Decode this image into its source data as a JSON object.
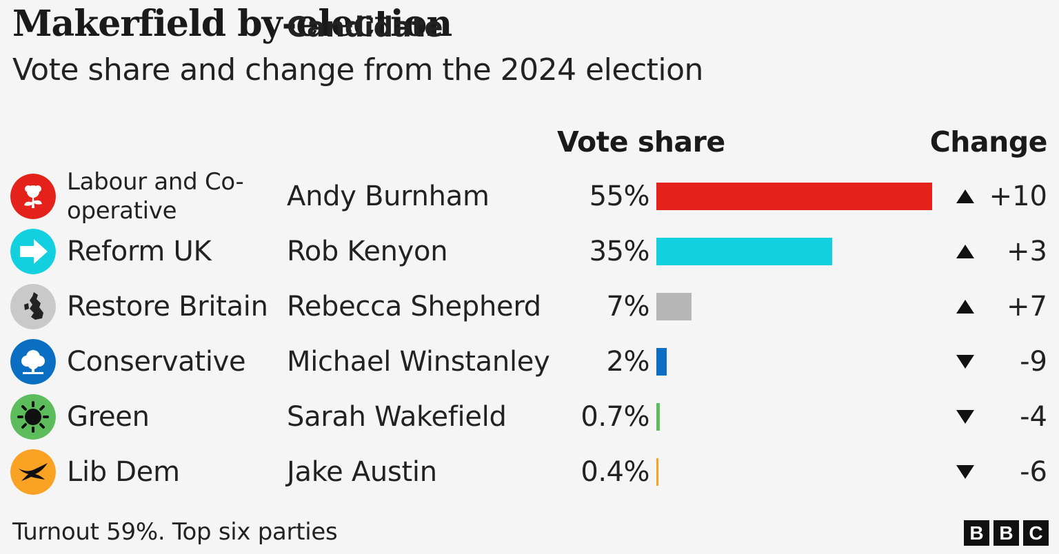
{
  "title": "Makerfield by-election",
  "subtitle": "Vote share and change from the 2024 election",
  "headers": {
    "candidate": "Candidate",
    "vote_share": "Vote share",
    "change": "Change"
  },
  "footnote": "Turnout 59%. Top six parties",
  "logo_text": [
    "B",
    "B",
    "C"
  ],
  "chart_data": {
    "type": "bar",
    "title": "Makerfield by-election",
    "subtitle": "Vote share and change from the 2024 election",
    "value_unit": "%",
    "rows": [
      {
        "party": "Labour and Co-operative",
        "candidate": "Andy Burnham",
        "share": 55,
        "share_label": "55%",
        "change": 10,
        "change_label": "+10",
        "direction": "up",
        "color": "#e4211b",
        "icon": "labour-rose-icon"
      },
      {
        "party": "Reform UK",
        "candidate": "Rob Kenyon",
        "share": 35,
        "share_label": "35%",
        "change": 3,
        "change_label": "+3",
        "direction": "up",
        "color": "#12d0df",
        "icon": "reform-arrow-icon"
      },
      {
        "party": "Restore Britain",
        "candidate": "Rebecca Shepherd",
        "share": 7,
        "share_label": "7%",
        "change": 7,
        "change_label": "+7",
        "direction": "up",
        "color": "#b7b7b7",
        "icon": "restore-britain-map-icon"
      },
      {
        "party": "Conservative",
        "candidate": "Michael Winstanley",
        "share": 2,
        "share_label": "2%",
        "change": -9,
        "change_label": "-9",
        "direction": "down",
        "color": "#0a6fc2",
        "icon": "conservative-tree-icon"
      },
      {
        "party": "Green",
        "candidate": "Sarah Wakefield",
        "share": 0.7,
        "share_label": "0.7%",
        "change": -4,
        "change_label": "-4",
        "direction": "down",
        "color": "#5dbc5b",
        "icon": "green-globe-icon"
      },
      {
        "party": "Lib Dem",
        "candidate": "Jake Austin",
        "share": 0.4,
        "share_label": "0.4%",
        "change": -6,
        "change_label": "-6",
        "direction": "down",
        "color": "#f9a224",
        "icon": "libdem-bird-icon"
      }
    ]
  }
}
